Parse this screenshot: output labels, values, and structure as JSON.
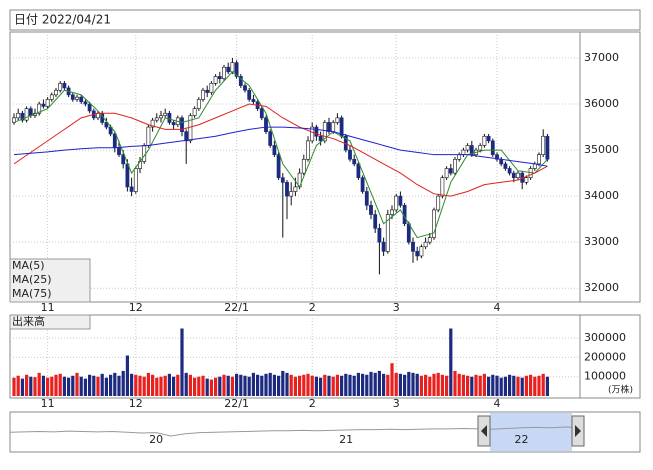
{
  "chart_data": {
    "type": "candlestick",
    "title": "日付 2022/04/21",
    "categories": [
      null,
      null,
      null,
      null,
      null,
      null,
      null,
      null,
      "11",
      null,
      null,
      null,
      null,
      null,
      null,
      null,
      null,
      null,
      null,
      null,
      null,
      null,
      null,
      null,
      null,
      null,
      null,
      null,
      null,
      "12",
      null,
      null,
      null,
      null,
      null,
      null,
      null,
      null,
      null,
      null,
      null,
      null,
      null,
      null,
      null,
      null,
      null,
      null,
      null,
      null,
      null,
      null,
      null,
      "22/1",
      null,
      null,
      null,
      null,
      null,
      null,
      null,
      null,
      null,
      null,
      null,
      null,
      null,
      null,
      null,
      null,
      null,
      "2",
      null,
      null,
      null,
      null,
      null,
      null,
      null,
      null,
      null,
      null,
      null,
      null,
      null,
      null,
      null,
      null,
      null,
      null,
      null,
      "3",
      null,
      null,
      null,
      null,
      null,
      null,
      null,
      null,
      null,
      null,
      null,
      null,
      null,
      null,
      null,
      null,
      null,
      null,
      null,
      null,
      null,
      null,
      null,
      "4",
      null,
      null,
      null,
      null,
      null,
      null,
      null,
      null,
      null,
      null,
      null,
      null
    ],
    "candles": [
      [
        35600,
        35800,
        35550,
        35700
      ],
      [
        35700,
        35900,
        35650,
        35800
      ],
      [
        35800,
        35850,
        35600,
        35650
      ],
      [
        35650,
        35950,
        35600,
        35900
      ],
      [
        35900,
        35950,
        35700,
        35750
      ],
      [
        35750,
        35900,
        35700,
        35800
      ],
      [
        35800,
        36050,
        35750,
        36000
      ],
      [
        36000,
        36100,
        35900,
        35950
      ],
      [
        35950,
        36150,
        35900,
        36100
      ],
      [
        36100,
        36250,
        36050,
        36200
      ],
      [
        36200,
        36350,
        36150,
        36300
      ],
      [
        36300,
        36500,
        36250,
        36450
      ],
      [
        36450,
        36500,
        36300,
        36350
      ],
      [
        36350,
        36400,
        36150,
        36200
      ],
      [
        36200,
        36250,
        36050,
        36100
      ],
      [
        36100,
        36200,
        36050,
        36150
      ],
      [
        36150,
        36200,
        36000,
        36050
      ],
      [
        36050,
        36100,
        35950,
        36000
      ],
      [
        36000,
        36050,
        35800,
        35850
      ],
      [
        35850,
        35900,
        35650,
        35700
      ],
      [
        35700,
        35850,
        35650,
        35800
      ],
      [
        35800,
        35850,
        35550,
        35600
      ],
      [
        35600,
        35700,
        35450,
        35500
      ],
      [
        35500,
        35550,
        35300,
        35350
      ],
      [
        35350,
        35400,
        34950,
        35050
      ],
      [
        35050,
        35200,
        34850,
        34900
      ],
      [
        34900,
        35000,
        34600,
        34700
      ],
      [
        34700,
        34800,
        34100,
        34200
      ],
      [
        34200,
        34400,
        34000,
        34100
      ],
      [
        34100,
        34650,
        34050,
        34600
      ],
      [
        34600,
        34850,
        34500,
        34750
      ],
      [
        34750,
        35150,
        34700,
        35100
      ],
      [
        35100,
        35550,
        35050,
        35500
      ],
      [
        35500,
        35700,
        35400,
        35650
      ],
      [
        35650,
        35800,
        35600,
        35700
      ],
      [
        35700,
        35850,
        35600,
        35750
      ],
      [
        35750,
        35900,
        35700,
        35800
      ],
      [
        35800,
        35850,
        35550,
        35600
      ],
      [
        35600,
        35650,
        35450,
        35550
      ],
      [
        35550,
        35750,
        35500,
        35700
      ],
      [
        35700,
        35750,
        35300,
        35400
      ],
      [
        35400,
        35450,
        34700,
        35200
      ],
      [
        35200,
        35800,
        35150,
        35750
      ],
      [
        35750,
        35950,
        35700,
        35900
      ],
      [
        35900,
        36150,
        35850,
        36100
      ],
      [
        36100,
        36350,
        36050,
        36300
      ],
      [
        36300,
        36400,
        36150,
        36250
      ],
      [
        36250,
        36500,
        36200,
        36450
      ],
      [
        36450,
        36650,
        36400,
        36600
      ],
      [
        36600,
        36700,
        36450,
        36550
      ],
      [
        36550,
        36850,
        36500,
        36800
      ],
      [
        36800,
        36900,
        36650,
        36700
      ],
      [
        36700,
        37000,
        36650,
        36900
      ],
      [
        36900,
        36950,
        36550,
        36600
      ],
      [
        36600,
        36650,
        36350,
        36400
      ],
      [
        36400,
        36450,
        36250,
        36300
      ],
      [
        36300,
        36350,
        36050,
        36100
      ],
      [
        36100,
        36200,
        36000,
        36050
      ],
      [
        36050,
        36100,
        35850,
        35900
      ],
      [
        35900,
        35950,
        35650,
        35700
      ],
      [
        35700,
        35750,
        35350,
        35400
      ],
      [
        35400,
        35450,
        35050,
        35100
      ],
      [
        35100,
        35200,
        34850,
        34900
      ],
      [
        34900,
        34950,
        34350,
        34400
      ],
      [
        34400,
        34500,
        33100,
        34300
      ],
      [
        34300,
        34350,
        33500,
        34000
      ],
      [
        34000,
        34300,
        33800,
        34100
      ],
      [
        34100,
        34400,
        34000,
        34200
      ],
      [
        34200,
        34600,
        34150,
        34500
      ],
      [
        34500,
        34900,
        34450,
        34800
      ],
      [
        34800,
        35300,
        34750,
        35200
      ],
      [
        35200,
        35600,
        35150,
        35500
      ],
      [
        35500,
        35550,
        35200,
        35300
      ],
      [
        35300,
        35400,
        35100,
        35200
      ],
      [
        35200,
        35650,
        35150,
        35600
      ],
      [
        35600,
        35700,
        35350,
        35400
      ],
      [
        35400,
        35650,
        35350,
        35600
      ],
      [
        35600,
        35800,
        35550,
        35700
      ],
      [
        35700,
        35750,
        35250,
        35300
      ],
      [
        35300,
        35350,
        34950,
        35000
      ],
      [
        35000,
        35100,
        34750,
        34800
      ],
      [
        34800,
        34900,
        34650,
        34700
      ],
      [
        34700,
        34750,
        34350,
        34400
      ],
      [
        34400,
        34450,
        34050,
        34100
      ],
      [
        34100,
        34200,
        33700,
        33800
      ],
      [
        33800,
        33900,
        33500,
        33600
      ],
      [
        33600,
        33700,
        33200,
        33300
      ],
      [
        33300,
        33400,
        32300,
        33000
      ],
      [
        33000,
        33100,
        32700,
        32800
      ],
      [
        32800,
        33700,
        32750,
        33600
      ],
      [
        33600,
        33800,
        33500,
        33700
      ],
      [
        33700,
        34050,
        33650,
        34000
      ],
      [
        34000,
        34100,
        33750,
        33800
      ],
      [
        33800,
        33850,
        33350,
        33400
      ],
      [
        33400,
        33450,
        32950,
        33000
      ],
      [
        33000,
        33100,
        32550,
        32800
      ],
      [
        32800,
        32900,
        32600,
        32700
      ],
      [
        32700,
        32950,
        32650,
        32900
      ],
      [
        32900,
        33100,
        32850,
        33000
      ],
      [
        33000,
        33200,
        32950,
        33100
      ],
      [
        33100,
        33750,
        33050,
        33700
      ],
      [
        33700,
        34050,
        33650,
        34000
      ],
      [
        34000,
        34450,
        33950,
        34400
      ],
      [
        34400,
        34650,
        34350,
        34600
      ],
      [
        34600,
        34700,
        34450,
        34500
      ],
      [
        34500,
        34850,
        34450,
        34800
      ],
      [
        34800,
        34950,
        34750,
        34900
      ],
      [
        34900,
        35050,
        34850,
        35000
      ],
      [
        35000,
        35150,
        34950,
        35100
      ],
      [
        35100,
        35200,
        34850,
        34900
      ],
      [
        34900,
        35050,
        34850,
        35000
      ],
      [
        35000,
        35150,
        34950,
        35100
      ],
      [
        35100,
        35350,
        35050,
        35300
      ],
      [
        35300,
        35350,
        35150,
        35200
      ],
      [
        35200,
        35250,
        34850,
        34900
      ],
      [
        34900,
        34950,
        34750,
        34800
      ],
      [
        34800,
        34850,
        34650,
        34700
      ],
      [
        34700,
        34750,
        34550,
        34600
      ],
      [
        34600,
        34650,
        34450,
        34500
      ],
      [
        34500,
        34550,
        34300,
        34400
      ],
      [
        34400,
        34550,
        34350,
        34500
      ],
      [
        34500,
        34550,
        34150,
        34300
      ],
      [
        34300,
        34450,
        34250,
        34400
      ],
      [
        34400,
        34650,
        34350,
        34600
      ],
      [
        34600,
        34750,
        34550,
        34700
      ],
      [
        34700,
        34950,
        34650,
        34900
      ],
      [
        34900,
        35450,
        34850,
        35300
      ],
      [
        35300,
        35350,
        34750,
        34800
      ]
    ],
    "up_color": "#ffffff",
    "down_color": "#1c2a80",
    "wick_color": "#111111",
    "ylim": [
      31700,
      37565
    ],
    "yticks": [
      32000,
      33000,
      34000,
      35000,
      36000,
      37000
    ],
    "grid": true,
    "series": [
      {
        "name": "MA(5)",
        "color": "#2e8b2e",
        "x": [
          0,
          4,
          8,
          12,
          16,
          20,
          24,
          28,
          32,
          36,
          40,
          44,
          48,
          52,
          56,
          60,
          64,
          68,
          72,
          76,
          80,
          84,
          88,
          92,
          96,
          100,
          104,
          108,
          112,
          116,
          120,
          124,
          127
        ],
        "values": [
          35600,
          35750,
          35900,
          36300,
          36200,
          35850,
          35400,
          34500,
          35000,
          35700,
          35600,
          35700,
          36300,
          36700,
          36400,
          35800,
          34700,
          34200,
          35100,
          35400,
          35200,
          34300,
          33400,
          33700,
          33100,
          33200,
          34300,
          34900,
          35000,
          35000,
          34550,
          34500,
          34800
        ]
      },
      {
        "name": "MA(25)",
        "color": "#e02020",
        "x": [
          0,
          4,
          8,
          12,
          16,
          20,
          24,
          28,
          32,
          36,
          40,
          44,
          48,
          52,
          56,
          60,
          64,
          68,
          72,
          76,
          80,
          84,
          88,
          92,
          96,
          100,
          104,
          108,
          112,
          116,
          120,
          124,
          127
        ],
        "values": [
          34700,
          34950,
          35200,
          35450,
          35700,
          35800,
          35800,
          35700,
          35550,
          35450,
          35450,
          35550,
          35700,
          35850,
          36000,
          35950,
          35700,
          35500,
          35350,
          35250,
          35100,
          34900,
          34700,
          34500,
          34250,
          34050,
          34000,
          34100,
          34250,
          34300,
          34350,
          34500,
          34650
        ]
      },
      {
        "name": "MA(75)",
        "color": "#2020d0",
        "x": [
          0,
          4,
          8,
          12,
          16,
          20,
          24,
          28,
          32,
          36,
          40,
          44,
          48,
          52,
          56,
          60,
          64,
          68,
          72,
          76,
          80,
          84,
          88,
          92,
          96,
          100,
          104,
          108,
          112,
          116,
          120,
          124,
          127
        ],
        "values": [
          34900,
          34930,
          34960,
          35000,
          35030,
          35050,
          35050,
          35080,
          35100,
          35150,
          35200,
          35250,
          35300,
          35380,
          35450,
          35500,
          35500,
          35480,
          35450,
          35400,
          35300,
          35200,
          35100,
          35000,
          34950,
          34900,
          34900,
          34900,
          34850,
          34800,
          34750,
          34700,
          34650
        ]
      }
    ],
    "volume": {
      "title": "出来高",
      "unit": "(万株)",
      "up_color": "#e8201e",
      "down_color": "#1c2a80",
      "ylim": [
        0,
        420000
      ],
      "yticks": [
        100000,
        200000,
        300000
      ],
      "values": [
        95000,
        105000,
        90000,
        110000,
        100000,
        98000,
        120000,
        105000,
        95000,
        100000,
        110000,
        115000,
        100000,
        95000,
        105000,
        120000,
        100000,
        90000,
        110000,
        105000,
        100000,
        115000,
        95000,
        110000,
        120000,
        105000,
        130000,
        210000,
        115000,
        110000,
        105000,
        100000,
        120000,
        110000,
        95000,
        100000,
        105000,
        115000,
        100000,
        110000,
        350000,
        120000,
        110000,
        95000,
        100000,
        105000,
        90000,
        85000,
        95000,
        100000,
        110000,
        105000,
        100000,
        115000,
        110000,
        105000,
        100000,
        120000,
        110000,
        105000,
        115000,
        120000,
        110000,
        105000,
        130000,
        120000,
        110000,
        100000,
        105000,
        110000,
        115000,
        105000,
        100000,
        95000,
        110000,
        105000,
        100000,
        110000,
        105000,
        115000,
        110000,
        105000,
        120000,
        115000,
        110000,
        125000,
        120000,
        130000,
        115000,
        110000,
        170000,
        120000,
        115000,
        110000,
        125000,
        120000,
        115000,
        105000,
        110000,
        100000,
        115000,
        120000,
        110000,
        105000,
        350000,
        130000,
        115000,
        110000,
        105000,
        100000,
        110000,
        105000,
        115000,
        100000,
        110000,
        105000,
        95000,
        100000,
        110000,
        105000,
        100000,
        95000,
        105000,
        110000,
        100000,
        105000,
        115000,
        100000
      ]
    },
    "navigator": {
      "color": "#999999",
      "ylim": [
        0,
        100
      ],
      "categories": [
        null,
        null,
        null,
        null,
        null,
        null,
        null,
        null,
        null,
        null,
        "20",
        null,
        null,
        null,
        null,
        null,
        null,
        null,
        null,
        null,
        null,
        null,
        null,
        "21",
        null,
        null,
        null,
        null,
        null,
        null,
        null,
        null,
        null,
        null,
        null,
        "22",
        null,
        null,
        null,
        null
      ],
      "values": [
        48,
        49,
        50,
        49,
        51,
        50,
        49,
        50,
        48,
        46,
        47,
        38,
        44,
        47,
        48,
        49,
        50,
        51,
        52,
        52,
        53,
        52,
        53,
        54,
        55,
        55,
        56,
        55,
        56,
        57,
        57,
        58,
        57,
        56,
        58,
        60,
        61,
        60,
        62,
        61
      ]
    }
  }
}
